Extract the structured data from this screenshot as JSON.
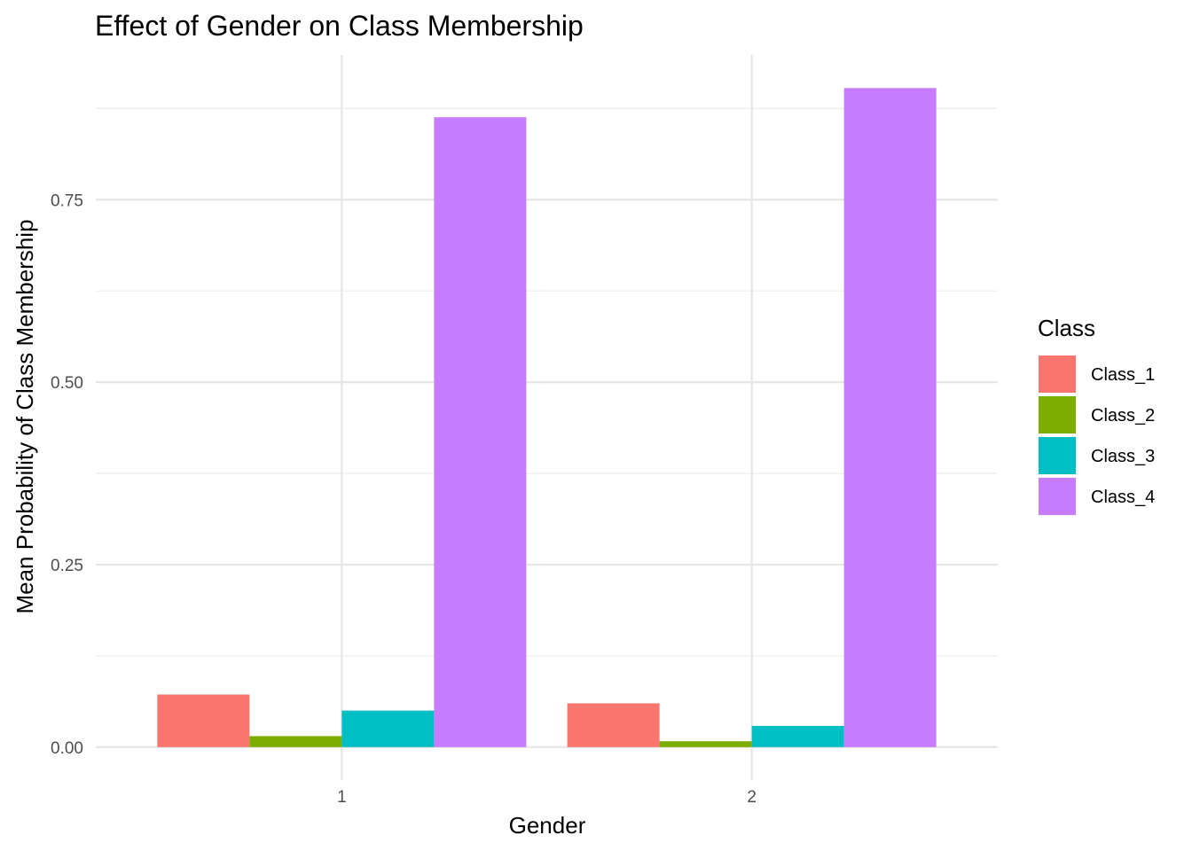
{
  "chart_data": {
    "type": "bar",
    "title": "Effect of Gender on Class Membership",
    "xlabel": "Gender",
    "ylabel": "Mean Probability of Class Membership",
    "categories": [
      "1",
      "2"
    ],
    "series": [
      {
        "name": "Class_1",
        "color": "#F8766D",
        "values": [
          0.072,
          0.06
        ]
      },
      {
        "name": "Class_2",
        "color": "#7CAE00",
        "values": [
          0.015,
          0.008
        ]
      },
      {
        "name": "Class_3",
        "color": "#00BFC4",
        "values": [
          0.05,
          0.029
        ]
      },
      {
        "name": "Class_4",
        "color": "#C77CFF",
        "values": [
          0.863,
          0.903
        ]
      }
    ],
    "yticks": [
      0.0,
      0.25,
      0.5,
      0.75
    ],
    "ytick_labels": [
      "0.00",
      "0.25",
      "0.50",
      "0.75"
    ],
    "ylim": [
      -0.0452,
      0.9483
    ],
    "legend": {
      "title": "Class",
      "position": "right"
    },
    "grid": true
  }
}
